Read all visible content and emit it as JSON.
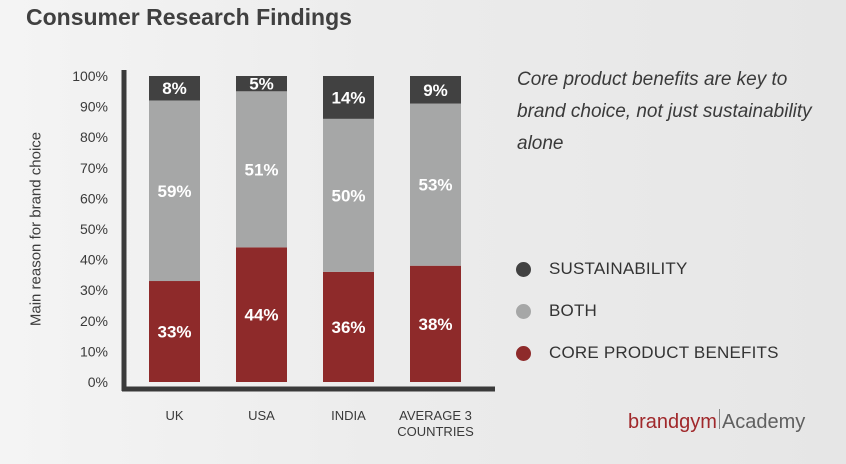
{
  "title": "Consumer Research Findings",
  "note": "Core product benefits are key to brand choice, not just sustainability alone",
  "brand": {
    "main": "brandgym",
    "sub": "Academy"
  },
  "colors": {
    "sustainability": "#414141",
    "both": "#a6a7a7",
    "core": "#8e2a2a",
    "axis": "#3a3a3a"
  },
  "legend": [
    {
      "label": "SUSTAINABILITY",
      "color": "#414141"
    },
    {
      "label": "BOTH",
      "color": "#a6a7a7"
    },
    {
      "label": "CORE PRODUCT BENEFITS",
      "color": "#8e2a2a"
    }
  ],
  "chart_data": {
    "type": "bar",
    "stacked": true,
    "ylabel": "Main reason for brand choice",
    "xlabel": "",
    "ylim": [
      0,
      100
    ],
    "yticks": [
      "0%",
      "10%",
      "20%",
      "30%",
      "40%",
      "50%",
      "60%",
      "70%",
      "80%",
      "90%",
      "100%"
    ],
    "categories": [
      [
        "UK"
      ],
      [
        "USA"
      ],
      [
        "INDIA"
      ],
      [
        "AVERAGE 3",
        "COUNTRIES"
      ]
    ],
    "series": [
      {
        "name": "CORE PRODUCT BENEFITS",
        "values": [
          33,
          44,
          36,
          38
        ],
        "labels": [
          "33%",
          "44%",
          "36%",
          "38%"
        ]
      },
      {
        "name": "BOTH",
        "values": [
          59,
          51,
          50,
          53
        ],
        "labels": [
          "59%",
          "51%",
          "50%",
          "53%"
        ]
      },
      {
        "name": "SUSTAINABILITY",
        "values": [
          8,
          5,
          14,
          9
        ],
        "labels": [
          "8%",
          "5%",
          "14%",
          "9%"
        ]
      }
    ],
    "grid": false,
    "legend_position": "right"
  }
}
